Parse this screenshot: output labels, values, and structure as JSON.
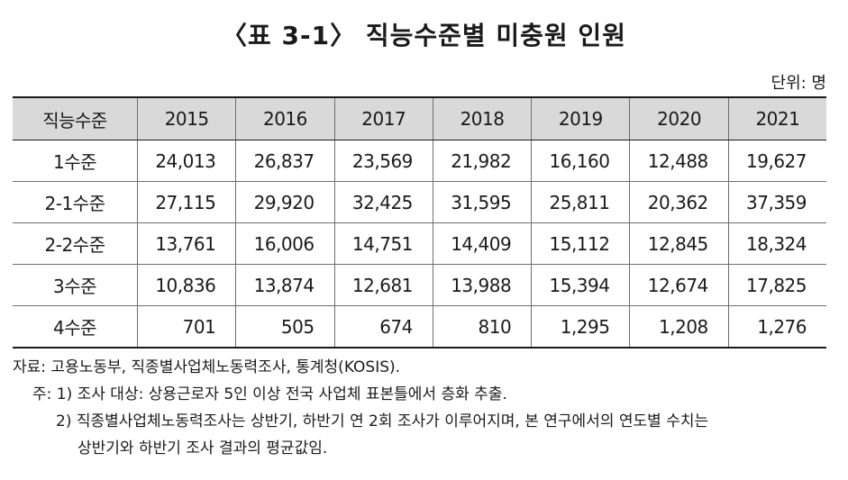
{
  "title": "〈표 3-1〉 직능수준별 미충원 인원",
  "unit": "단위: 명",
  "table": {
    "headers": [
      "직능수준",
      "2015",
      "2016",
      "2017",
      "2018",
      "2019",
      "2020",
      "2021"
    ],
    "rows": [
      [
        "1수준",
        "24,013",
        "26,837",
        "23,569",
        "21,982",
        "16,160",
        "12,488",
        "19,627"
      ],
      [
        "2-1수준",
        "27,115",
        "29,920",
        "32,425",
        "31,595",
        "25,811",
        "20,362",
        "37,359"
      ],
      [
        "2-2수준",
        "13,761",
        "16,006",
        "14,751",
        "14,409",
        "15,112",
        "12,845",
        "18,324"
      ],
      [
        "3수준",
        "10,836",
        "13,874",
        "12,681",
        "13,988",
        "15,394",
        "12,674",
        "17,825"
      ],
      [
        "4수준",
        "701",
        "505",
        "674",
        "810",
        "1,295",
        "1,208",
        "1,276"
      ]
    ]
  },
  "notes": {
    "source": "자료: 고용노동부, 직종별사업체노동력조사, 통계청(KOSIS).",
    "note1": "주: 1) 조사 대상: 상용근로자 5인 이상 전국 사업체 표본틀에서 층화 추출.",
    "note2a": "2) 직종별사업체노동력조사는 상반기, 하반기 연 2회 조사가 이루어지며, 본 연구에서의 연도별 수치는",
    "note2b": "상반기와 하반기 조사 결과의 평균값임."
  }
}
